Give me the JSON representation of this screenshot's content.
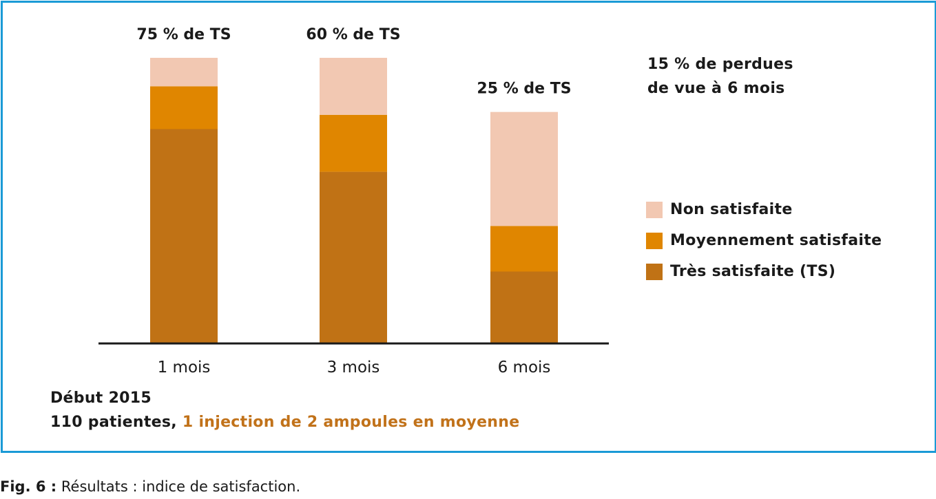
{
  "chart_data": {
    "type": "bar",
    "stacked": true,
    "categories": [
      "1 mois",
      "3 mois",
      "6 mois"
    ],
    "series": [
      {
        "name": "Très satisfaite (TS)",
        "color": "#c07215",
        "values": [
          75,
          60,
          25
        ]
      },
      {
        "name": "Moyennement satisfaite",
        "color": "#e08600",
        "values": [
          15,
          20,
          16
        ]
      },
      {
        "name": "Non satisfaite",
        "color": "#f2c8b2",
        "values": [
          10,
          20,
          40
        ]
      }
    ],
    "bar_labels": [
      "75 % de TS",
      "60 % de TS",
      "25 % de TS"
    ],
    "ylim": [
      0,
      100
    ],
    "grid": false,
    "legend_position": "right",
    "annotation_lines": [
      "15 % de perdues",
      "de vue à 6 mois"
    ],
    "footer": {
      "line1": "Début 2015",
      "line2_prefix": "110 patientes, ",
      "line2_highlight": "1 injection de 2 ampoules en moyenne"
    }
  },
  "caption": {
    "fig_label": "Fig. 6 :",
    "text": "Résultats : indice de satisfaction."
  }
}
